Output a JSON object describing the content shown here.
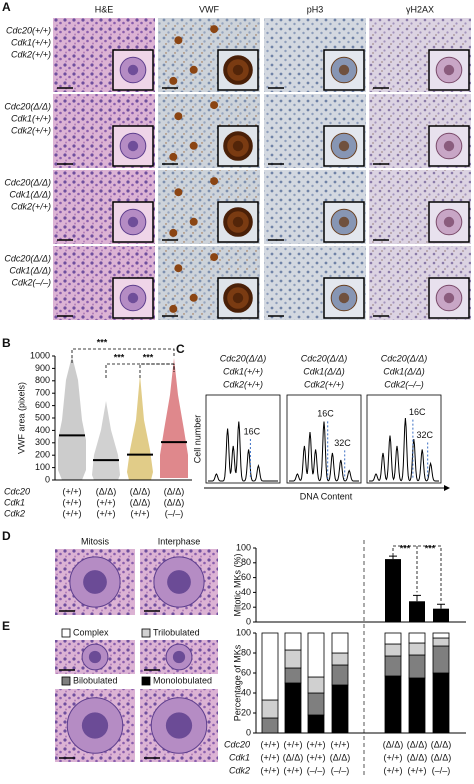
{
  "panel_a": {
    "letter": "A",
    "columns": [
      "H&E",
      "VWF",
      "pH3",
      "γH2AX"
    ],
    "rows": [
      [
        "Cdc20(+/+)",
        "Cdk1(+/+)",
        "Cdk2(+/+)"
      ],
      [
        "Cdc20(Δ/Δ)",
        "Cdk1(+/+)",
        "Cdk2(+/+)"
      ],
      [
        "Cdc20(Δ/Δ)",
        "Cdk1(Δ/Δ)",
        "Cdk2(+/+)"
      ],
      [
        "Cdc20(Δ/Δ)",
        "Cdk1(Δ/Δ)",
        "Cdk2(–/–)"
      ]
    ]
  },
  "panel_c": {
    "letter": "C",
    "headers": [
      [
        "Cdc20(Δ/Δ)",
        "Cdk1(+/+)",
        "Cdk2(+/+)"
      ],
      [
        "Cdc20(Δ/Δ)",
        "Cdk1(Δ/Δ)",
        "Cdk2(+/+)"
      ],
      [
        "Cdc20(Δ/Δ)",
        "Cdk1(Δ/Δ)",
        "Cdk2(–/–)"
      ]
    ],
    "peak_labels": [
      [
        "16C"
      ],
      [
        "16C",
        "32C"
      ],
      [
        "16C",
        "32C"
      ]
    ],
    "ylabel": "Cell number",
    "xlabel": "DNA Content"
  },
  "panel_d_images": {
    "labels": [
      "Mitosis",
      "Interphase"
    ]
  },
  "chart_data": [
    {
      "panel": "B",
      "type": "dot",
      "ylabel": "VWF area (pixels)",
      "genes": [
        "Cdc20",
        "Cdk1",
        "Cdk2"
      ],
      "genotypes": [
        [
          "(+/+)",
          "(Δ/Δ)",
          "(Δ/Δ)",
          "(Δ/Δ)"
        ],
        [
          "(+/+)",
          "(+/+)",
          "(Δ/Δ)",
          "(Δ/Δ)"
        ],
        [
          "(+/+)",
          "(+/+)",
          "(+/+)",
          "(–/–)"
        ]
      ],
      "values": [
        360,
        160,
        205,
        305
      ],
      "colors": [
        "#a3a3a3",
        "#ababab",
        "#c9a227",
        "#c4262e"
      ],
      "ylim": [
        0,
        1000
      ],
      "yticks": [
        0,
        100,
        200,
        300,
        400,
        500,
        600,
        700,
        800,
        900,
        1000
      ],
      "annotations": [
        "***",
        "***",
        "***"
      ]
    },
    {
      "panel": "D",
      "type": "bar",
      "ylabel": "Mitotic MKs (%)",
      "values": [
        0,
        0,
        0,
        0,
        85,
        28,
        18
      ],
      "errors": [
        0,
        0,
        0,
        0,
        4,
        8,
        6
      ],
      "color": "#000000",
      "ylim": [
        0,
        100
      ],
      "yticks": [
        0,
        20,
        40,
        60,
        80,
        100
      ],
      "annotations": [
        "***",
        "***"
      ]
    },
    {
      "panel": "E",
      "type": "stacked_bar",
      "ylabel": "Percentage of MKs",
      "genes": [
        "Cdc20",
        "Cdk1",
        "Cdk2"
      ],
      "genotypes": [
        [
          "(+/+)",
          "(+/+)",
          "(+/+)",
          "(+/+)",
          "(Δ/Δ)",
          "(Δ/Δ)",
          "(Δ/Δ)"
        ],
        [
          "(+/+)",
          "(Δ/Δ)",
          "(+/+)",
          "(Δ/Δ)",
          "(+/+)",
          "(Δ/Δ)",
          "(Δ/Δ)"
        ],
        [
          "(+/+)",
          "(+/+)",
          "(–/–)",
          "(–/–)",
          "(+/+)",
          "(+/+)",
          "(–/–)"
        ]
      ],
      "series": [
        {
          "name": "Monolobulated",
          "color": "#000000",
          "values": [
            0,
            50,
            18,
            48,
            57,
            55,
            60
          ]
        },
        {
          "name": "Bilobulated",
          "color": "#7f7f7f",
          "values": [
            15,
            15,
            22,
            20,
            20,
            23,
            27
          ]
        },
        {
          "name": "Trilobulated",
          "color": "#d0d0d0",
          "values": [
            18,
            18,
            16,
            12,
            12,
            12,
            8
          ]
        },
        {
          "name": "Complex",
          "color": "#ffffff",
          "values": [
            67,
            17,
            44,
            20,
            11,
            10,
            5
          ]
        }
      ],
      "ylim": [
        0,
        100
      ],
      "yticks": [
        0,
        20,
        40,
        60,
        80,
        100
      ]
    }
  ]
}
